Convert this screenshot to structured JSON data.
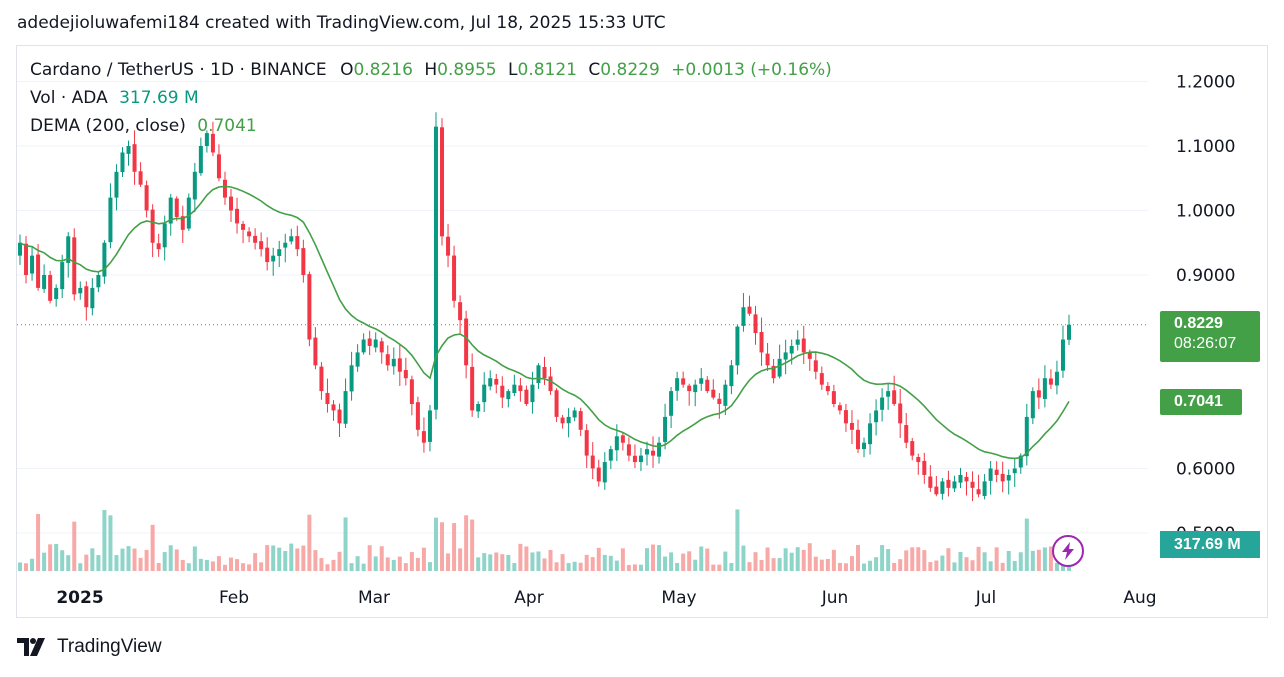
{
  "header": {
    "author_line": "adedejioluwafemi184 created with TradingView.com, Jul 18, 2025 15:33 UTC"
  },
  "legend": {
    "symbol": "Cardano / TetherUS · 1D · BINANCE",
    "o_label": "O",
    "o_value": "0.8216",
    "h_label": "H",
    "h_value": "0.8955",
    "l_label": "L",
    "l_value": "0.8121",
    "c_label": "C",
    "c_value": "0.8229",
    "change": "+0.0013 (+0.16%)",
    "vol_label": "Vol · ADA",
    "vol_value": "317.69 M",
    "dema_label": "DEMA (200, close)",
    "dema_value": "0.7041"
  },
  "price_badge": {
    "price": "0.8229",
    "countdown": "08:26:07"
  },
  "dema_badge": "0.7041",
  "volume_badge": "317.69 M",
  "footer": {
    "brand": "TradingView"
  },
  "colors": {
    "up": "#089981",
    "down": "#f23645",
    "dema": "#43a047",
    "vol_up": "#8ed4c9",
    "vol_down": "#f7a9a7",
    "badge_purple": "#9c27b0"
  },
  "icons": {
    "logo": "tradingview-logo-icon",
    "flash": "lightning-icon"
  },
  "chart_data": {
    "type": "candlestick",
    "title": "Cardano / TetherUS · 1D · BINANCE",
    "y_axis": {
      "ticks": [
        "1.2000",
        "1.1000",
        "1.0000",
        "0.9000",
        "0.6000",
        "0.5000"
      ],
      "range": [
        0.5,
        1.2
      ]
    },
    "x_axis": {
      "ticks": [
        "2025",
        "Feb",
        "Mar",
        "Apr",
        "May",
        "Jun",
        "Jul",
        "Aug"
      ]
    },
    "last_close": 0.8229,
    "series": [
      {
        "name": "ADA/USDT",
        "close": [
          0.95,
          0.9,
          0.93,
          0.88,
          0.9,
          0.86,
          0.88,
          0.92,
          0.96,
          0.87,
          0.88,
          0.85,
          0.88,
          0.9,
          0.95,
          1.02,
          1.06,
          1.09,
          1.1,
          1.06,
          1.04,
          1.0,
          0.95,
          0.94,
          0.98,
          1.02,
          0.99,
          0.97,
          1.02,
          1.06,
          1.1,
          1.12,
          1.09,
          1.05,
          1.02,
          1.0,
          0.98,
          0.97,
          0.96,
          0.95,
          0.94,
          0.92,
          0.93,
          0.94,
          0.95,
          0.96,
          0.94,
          0.9,
          0.8,
          0.76,
          0.72,
          0.7,
          0.69,
          0.67,
          0.72,
          0.76,
          0.78,
          0.8,
          0.79,
          0.8,
          0.78,
          0.76,
          0.77,
          0.75,
          0.74,
          0.7,
          0.66,
          0.64,
          0.69,
          1.13,
          0.96,
          0.93,
          0.86,
          0.83,
          0.76,
          0.69,
          0.7,
          0.73,
          0.74,
          0.73,
          0.71,
          0.72,
          0.73,
          0.72,
          0.7,
          0.73,
          0.76,
          0.74,
          0.72,
          0.68,
          0.67,
          0.68,
          0.69,
          0.66,
          0.62,
          0.6,
          0.58,
          0.61,
          0.63,
          0.65,
          0.64,
          0.62,
          0.61,
          0.62,
          0.63,
          0.62,
          0.64,
          0.68,
          0.72,
          0.74,
          0.73,
          0.72,
          0.73,
          0.74,
          0.72,
          0.71,
          0.7,
          0.73,
          0.76,
          0.82,
          0.85,
          0.84,
          0.81,
          0.78,
          0.76,
          0.74,
          0.77,
          0.78,
          0.79,
          0.8,
          0.78,
          0.77,
          0.75,
          0.73,
          0.72,
          0.7,
          0.69,
          0.67,
          0.66,
          0.63,
          0.64,
          0.67,
          0.69,
          0.71,
          0.72,
          0.7,
          0.67,
          0.64,
          0.62,
          0.61,
          0.59,
          0.57,
          0.56,
          0.58,
          0.57,
          0.58,
          0.59,
          0.58,
          0.57,
          0.56,
          0.58,
          0.6,
          0.59,
          0.58,
          0.59,
          0.6,
          0.62,
          0.68,
          0.72,
          0.71,
          0.74,
          0.73,
          0.75,
          0.8,
          0.8229
        ]
      },
      {
        "name": "DEMA (200, close)",
        "last": 0.7041
      },
      {
        "name": "Vol · ADA",
        "last": "317.69 M"
      }
    ]
  }
}
